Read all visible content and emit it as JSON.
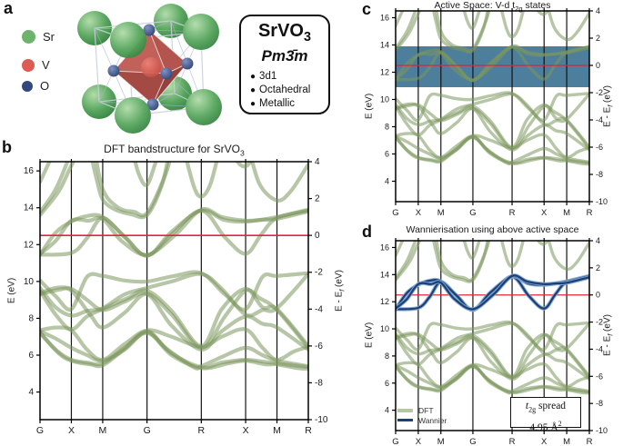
{
  "panels": {
    "a": {
      "label": "a",
      "legend": [
        {
          "name": "Sr",
          "color": "#6cb36c"
        },
        {
          "name": "V",
          "color": "#dd5b52"
        },
        {
          "name": "O",
          "color": "#32497e"
        }
      ],
      "info_box": {
        "formula": "SrVO",
        "formula_sub": "3",
        "space_group": "Pm3̄m",
        "bullets": [
          "3d1",
          "Octahedral",
          "Metallic"
        ]
      }
    },
    "b": {
      "label": "b",
      "title": "DFT bandstructure for SrVO",
      "title_sub": "3"
    },
    "c": {
      "label": "c",
      "title_pre": "Active Space: V-d t",
      "title_sub": "2g",
      "title_post": " states"
    },
    "d": {
      "label": "d",
      "title": "Wannierisation using above active space",
      "legend": [
        {
          "label": "DFT",
          "color": "#b7c6a5",
          "thickness": 4
        },
        {
          "label": "Wannier",
          "color": "#1d3e76",
          "thickness": 2.5
        }
      ],
      "spread_box": {
        "t": "t",
        "t_sub": "2g",
        "word": " spread",
        "value": "4.95 Å",
        "value_sup": "2"
      }
    }
  },
  "chart_data": {
    "type": "line",
    "description": "Electronic bandstructure of SrVO3 along G-X-M-G-R-X-M-R; energies in eV, Fermi level at 12.5 eV",
    "kpath": {
      "labels": [
        "G",
        "X",
        "M",
        "G",
        "R",
        "X",
        "M",
        "R"
      ],
      "positions": [
        0,
        0.5,
        1.0,
        1.707,
        2.573,
        3.28,
        3.78,
        4.28
      ]
    },
    "y_left": {
      "label": "E (eV)",
      "ticks": [
        4,
        6,
        8,
        10,
        12,
        14,
        16
      ],
      "range": [
        2.5,
        16.5
      ]
    },
    "y_right": {
      "label_pre": "E - E",
      "label_sub": "f",
      "label_post": " (eV)",
      "ticks": [
        -10,
        -8,
        -6,
        -4,
        -2,
        0,
        2,
        4
      ],
      "range": [
        -10,
        4
      ]
    },
    "fermi_level_eV": 12.5,
    "panel_configs": [
      {
        "id": "b",
        "shows": "dft"
      },
      {
        "id": "c",
        "shows": "dft",
        "active_window_eV": [
          10.9,
          13.9
        ]
      },
      {
        "id": "d",
        "shows": "dft+wannier",
        "wannier_spread_A2": 4.95
      }
    ],
    "bands_t2g": [
      [
        [
          0,
          11.45
        ],
        [
          0.5,
          11.55
        ],
        [
          0.75,
          12.35
        ],
        [
          1,
          13.45
        ],
        [
          1.35,
          12.4
        ],
        [
          1.707,
          11.4
        ],
        [
          2.1,
          12.55
        ],
        [
          2.573,
          13.85
        ],
        [
          2.95,
          12.4
        ],
        [
          3.28,
          11.5
        ],
        [
          3.53,
          12.55
        ],
        [
          3.78,
          13.45
        ],
        [
          4.28,
          13.85
        ]
      ],
      [
        [
          0,
          11.45
        ],
        [
          0.25,
          12.65
        ],
        [
          0.5,
          13.25
        ],
        [
          0.75,
          13.55
        ],
        [
          1,
          13.5
        ],
        [
          1.35,
          12.45
        ],
        [
          1.707,
          11.4
        ],
        [
          2.1,
          12.7
        ],
        [
          2.573,
          13.85
        ],
        [
          2.93,
          13.35
        ],
        [
          3.28,
          13.25
        ],
        [
          3.78,
          13.5
        ],
        [
          4.28,
          13.9
        ]
      ],
      [
        [
          0,
          11.5
        ],
        [
          0.25,
          12.2
        ],
        [
          0.5,
          13.3
        ],
        [
          0.78,
          13.3
        ],
        [
          1,
          13.4
        ],
        [
          1.3,
          12.2
        ],
        [
          1.707,
          11.45
        ],
        [
          2.15,
          12.5
        ],
        [
          2.573,
          13.9
        ],
        [
          2.9,
          13.5
        ],
        [
          3.28,
          13.3
        ],
        [
          3.55,
          13.35
        ],
        [
          3.78,
          13.4
        ],
        [
          4.28,
          13.8
        ]
      ]
    ],
    "bands_O2p": [
      [
        [
          0,
          10.05
        ],
        [
          0.25,
          9.2
        ],
        [
          0.5,
          8.5
        ],
        [
          0.75,
          10.25
        ],
        [
          1,
          10.3
        ],
        [
          1.35,
          10.05
        ],
        [
          1.707,
          10.0
        ],
        [
          2.14,
          10.3
        ],
        [
          2.573,
          10.45
        ],
        [
          2.95,
          9.3
        ],
        [
          3.28,
          8.5
        ],
        [
          3.55,
          10.25
        ],
        [
          3.78,
          10.3
        ],
        [
          4.28,
          10.45
        ]
      ],
      [
        [
          0,
          9.65
        ],
        [
          0.25,
          8.6
        ],
        [
          0.5,
          8.15
        ],
        [
          0.75,
          8.4
        ],
        [
          1,
          8.55
        ],
        [
          1.35,
          9.3
        ],
        [
          1.707,
          9.65
        ],
        [
          2.1,
          10.0
        ],
        [
          2.573,
          10.4
        ],
        [
          2.9,
          9.6
        ],
        [
          3.28,
          8.2
        ],
        [
          3.55,
          8.45
        ],
        [
          3.78,
          8.55
        ],
        [
          4.28,
          10.4
        ]
      ],
      [
        [
          0,
          9.5
        ],
        [
          0.25,
          8.2
        ],
        [
          0.5,
          7.4
        ],
        [
          0.75,
          8.1
        ],
        [
          1,
          8.5
        ],
        [
          1.4,
          9.1
        ],
        [
          1.707,
          9.5
        ],
        [
          2.1,
          8.4
        ],
        [
          2.573,
          6.5
        ],
        [
          2.9,
          8.5
        ],
        [
          3.28,
          9.6
        ],
        [
          3.55,
          8.6
        ],
        [
          3.78,
          8.5
        ],
        [
          4.28,
          6.5
        ]
      ],
      [
        [
          0,
          9.35
        ],
        [
          0.25,
          9.65
        ],
        [
          0.5,
          9.6
        ],
        [
          0.75,
          9.0
        ],
        [
          1,
          8.45
        ],
        [
          1.35,
          8.9
        ],
        [
          1.707,
          9.35
        ],
        [
          2.1,
          8.2
        ],
        [
          2.573,
          6.4
        ],
        [
          2.95,
          8.1
        ],
        [
          3.28,
          9.5
        ],
        [
          3.5,
          9.1
        ],
        [
          3.78,
          8.45
        ],
        [
          4.28,
          6.4
        ]
      ],
      [
        [
          0,
          9.3
        ],
        [
          0.3,
          9.55
        ],
        [
          0.5,
          9.5
        ],
        [
          0.8,
          8.2
        ],
        [
          1,
          7.5
        ],
        [
          1.35,
          8.3
        ],
        [
          1.707,
          9.3
        ],
        [
          2.1,
          7.6
        ],
        [
          2.573,
          6.3
        ],
        [
          2.9,
          7.3
        ],
        [
          3.28,
          8.1
        ],
        [
          3.55,
          7.7
        ],
        [
          3.78,
          7.5
        ],
        [
          4.28,
          6.3
        ]
      ],
      [
        [
          0,
          7.35
        ],
        [
          0.25,
          7.5
        ],
        [
          0.5,
          7.35
        ],
        [
          0.75,
          6.3
        ],
        [
          1,
          5.75
        ],
        [
          1.35,
          6.6
        ],
        [
          1.707,
          7.35
        ],
        [
          2.1,
          7.0
        ],
        [
          2.573,
          6.45
        ],
        [
          2.9,
          7.0
        ],
        [
          3.28,
          7.4
        ],
        [
          3.55,
          6.4
        ],
        [
          3.78,
          5.75
        ],
        [
          4.05,
          6.2
        ],
        [
          4.28,
          6.45
        ]
      ],
      [
        [
          0,
          7.3
        ],
        [
          0.25,
          6.9
        ],
        [
          0.5,
          6.4
        ],
        [
          0.75,
          6.0
        ],
        [
          1,
          5.7
        ],
        [
          1.35,
          6.3
        ],
        [
          1.707,
          7.3
        ],
        [
          2.0,
          6.4
        ],
        [
          2.45,
          5.35
        ],
        [
          2.573,
          5.4
        ],
        [
          2.9,
          5.9
        ],
        [
          3.28,
          6.4
        ],
        [
          3.55,
          6.0
        ],
        [
          3.78,
          5.7
        ],
        [
          4.28,
          5.4
        ]
      ],
      [
        [
          0,
          7.25
        ],
        [
          0.25,
          6.3
        ],
        [
          0.5,
          5.75
        ],
        [
          0.75,
          5.6
        ],
        [
          1,
          5.55
        ],
        [
          1.35,
          6.4
        ],
        [
          1.707,
          7.25
        ],
        [
          2.1,
          6.1
        ],
        [
          2.573,
          5.35
        ],
        [
          2.9,
          5.6
        ],
        [
          3.28,
          5.75
        ],
        [
          3.55,
          5.65
        ],
        [
          3.78,
          5.55
        ],
        [
          4.28,
          5.35
        ]
      ],
      [
        [
          0,
          7.2
        ],
        [
          0.3,
          6.1
        ],
        [
          0.5,
          5.7
        ],
        [
          0.8,
          5.5
        ],
        [
          1,
          5.45
        ],
        [
          1.3,
          6.2
        ],
        [
          1.707,
          7.2
        ],
        [
          2.1,
          6.0
        ],
        [
          2.573,
          5.3
        ],
        [
          3.0,
          5.55
        ],
        [
          3.28,
          5.7
        ],
        [
          3.6,
          5.5
        ],
        [
          3.78,
          5.5
        ],
        [
          4.1,
          5.3
        ],
        [
          4.28,
          5.25
        ]
      ]
    ],
    "bands_upper": [
      [
        [
          0,
          15.4
        ],
        [
          0.15,
          16.5
        ],
        [
          0.28,
          17.4
        ]
      ],
      [
        [
          0,
          13.6
        ],
        [
          0.3,
          14.9
        ],
        [
          0.5,
          16.3
        ],
        [
          0.68,
          17.4
        ]
      ],
      [
        [
          0,
          13.75
        ],
        [
          0.25,
          15.0
        ],
        [
          0.45,
          16.6
        ],
        [
          0.56,
          17.4
        ]
      ],
      [
        [
          0.78,
          17.4
        ],
        [
          0.9,
          15.6
        ],
        [
          1,
          14.45
        ],
        [
          1.2,
          13.9
        ],
        [
          1.45,
          13.65
        ],
        [
          1.707,
          13.6
        ],
        [
          1.95,
          15.3
        ],
        [
          2.08,
          17.4
        ]
      ],
      [
        [
          0.86,
          17.4
        ],
        [
          1,
          15.0
        ],
        [
          1.25,
          14.0
        ],
        [
          1.5,
          13.78
        ],
        [
          1.707,
          13.72
        ],
        [
          2.0,
          15.8
        ],
        [
          2.13,
          17.4
        ]
      ],
      [
        [
          1.45,
          17.4
        ],
        [
          1.58,
          15.8
        ],
        [
          1.707,
          15.25
        ],
        [
          1.85,
          16.5
        ],
        [
          1.97,
          17.4
        ]
      ],
      [
        [
          2.28,
          17.4
        ],
        [
          2.45,
          15.2
        ],
        [
          2.573,
          14.6
        ],
        [
          2.72,
          15.3
        ],
        [
          2.88,
          17.4
        ]
      ],
      [
        [
          3.0,
          17.4
        ],
        [
          3.15,
          16.5
        ],
        [
          3.28,
          16.25
        ],
        [
          3.42,
          16.8
        ],
        [
          3.54,
          17.4
        ]
      ],
      [
        [
          3.32,
          17.4
        ],
        [
          3.5,
          15.3
        ],
        [
          3.78,
          14.4
        ],
        [
          4.0,
          14.9
        ],
        [
          4.28,
          16.35
        ]
      ]
    ],
    "colors": {
      "dft_band": "#7c985c",
      "dft_band_alpha": 0.55,
      "wannier_core": "#1d3e76",
      "wannier_halo": "#7fa8d4",
      "fermi_line": "#e0263a",
      "active_window": "#4d7e9c",
      "kline": "#141414",
      "frame": "#000000"
    }
  }
}
